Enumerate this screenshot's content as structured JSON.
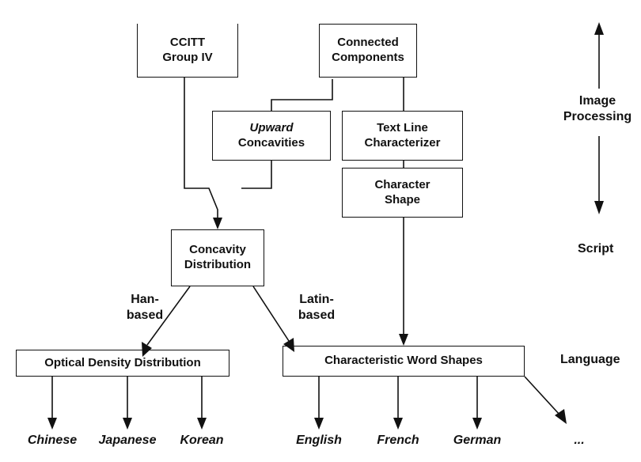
{
  "boxes": {
    "ccitt": {
      "lines": [
        "CCITT",
        "Group IV"
      ]
    },
    "connected": {
      "lines": [
        "Connected",
        "Components"
      ]
    },
    "upward": {
      "lines": [
        "Upward",
        "Concavities"
      ]
    },
    "textline": {
      "lines": [
        "Text Line",
        "Characterizer"
      ]
    },
    "charshape": {
      "lines": [
        "Character",
        "Shape"
      ]
    },
    "concavity": {
      "lines": [
        "Concavity",
        "Distribution"
      ]
    },
    "optical": {
      "lines": [
        "Optical Density Distribution"
      ]
    },
    "wordshapes": {
      "lines": [
        "Characteristic Word Shapes"
      ]
    }
  },
  "branches": {
    "han": [
      "Han-",
      "based"
    ],
    "latin": [
      "Latin-",
      "based"
    ]
  },
  "stages": {
    "image_processing": [
      "Image",
      "Processing"
    ],
    "script": "Script",
    "language": "Language"
  },
  "languages": {
    "han": [
      "Chinese",
      "Japanese",
      "Korean"
    ],
    "latin": [
      "English",
      "French",
      "German"
    ],
    "more": "..."
  }
}
